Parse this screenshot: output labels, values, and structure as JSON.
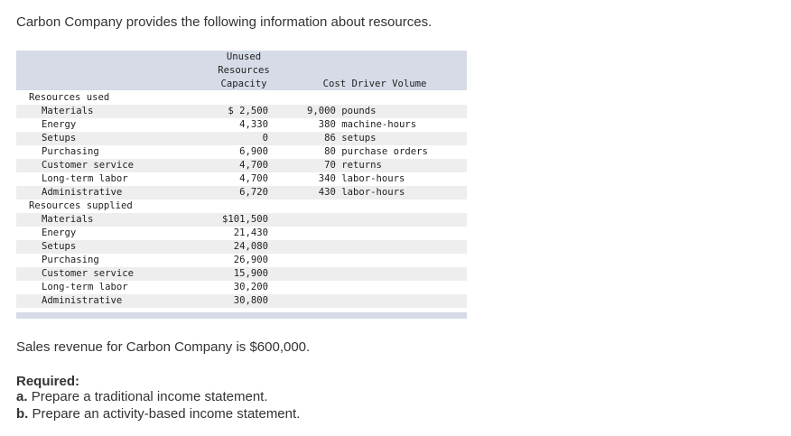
{
  "intro": "Carbon Company provides the following information about resources.",
  "table": {
    "header": {
      "col1_line1": "Unused",
      "col1_line2": "Resources",
      "col1_line3": "Capacity",
      "col2": "Cost Driver Volume"
    },
    "section_used": "Resources used",
    "used_rows": [
      {
        "label": "Materials",
        "amount": "$ 2,500",
        "driver": "9,000 pounds"
      },
      {
        "label": "Energy",
        "amount": "4,330",
        "driver": "  380 machine-hours"
      },
      {
        "label": "Setups",
        "amount": "0",
        "driver": "   86 setups"
      },
      {
        "label": "Purchasing",
        "amount": "6,900",
        "driver": "   80 purchase orders"
      },
      {
        "label": "Customer service",
        "amount": "4,700",
        "driver": "   70 returns"
      },
      {
        "label": "Long-term labor",
        "amount": "4,700",
        "driver": "  340 labor-hours"
      },
      {
        "label": "Administrative",
        "amount": "6,720",
        "driver": "  430 labor-hours"
      }
    ],
    "section_supplied": "Resources supplied",
    "supplied_rows": [
      {
        "label": "Materials",
        "amount": "$101,500"
      },
      {
        "label": "Energy",
        "amount": "21,430"
      },
      {
        "label": "Setups",
        "amount": "24,080"
      },
      {
        "label": "Purchasing",
        "amount": "26,900"
      },
      {
        "label": "Customer service",
        "amount": "15,900"
      },
      {
        "label": "Long-term labor",
        "amount": "30,200"
      },
      {
        "label": "Administrative",
        "amount": "30,800"
      }
    ]
  },
  "sales_text": "Sales revenue for Carbon Company is $600,000.",
  "required": {
    "title": "Required:",
    "items": [
      {
        "letter": "a.",
        "text": "Prepare a traditional income statement."
      },
      {
        "letter": "b.",
        "text": "Prepare an activity-based income statement."
      }
    ]
  }
}
